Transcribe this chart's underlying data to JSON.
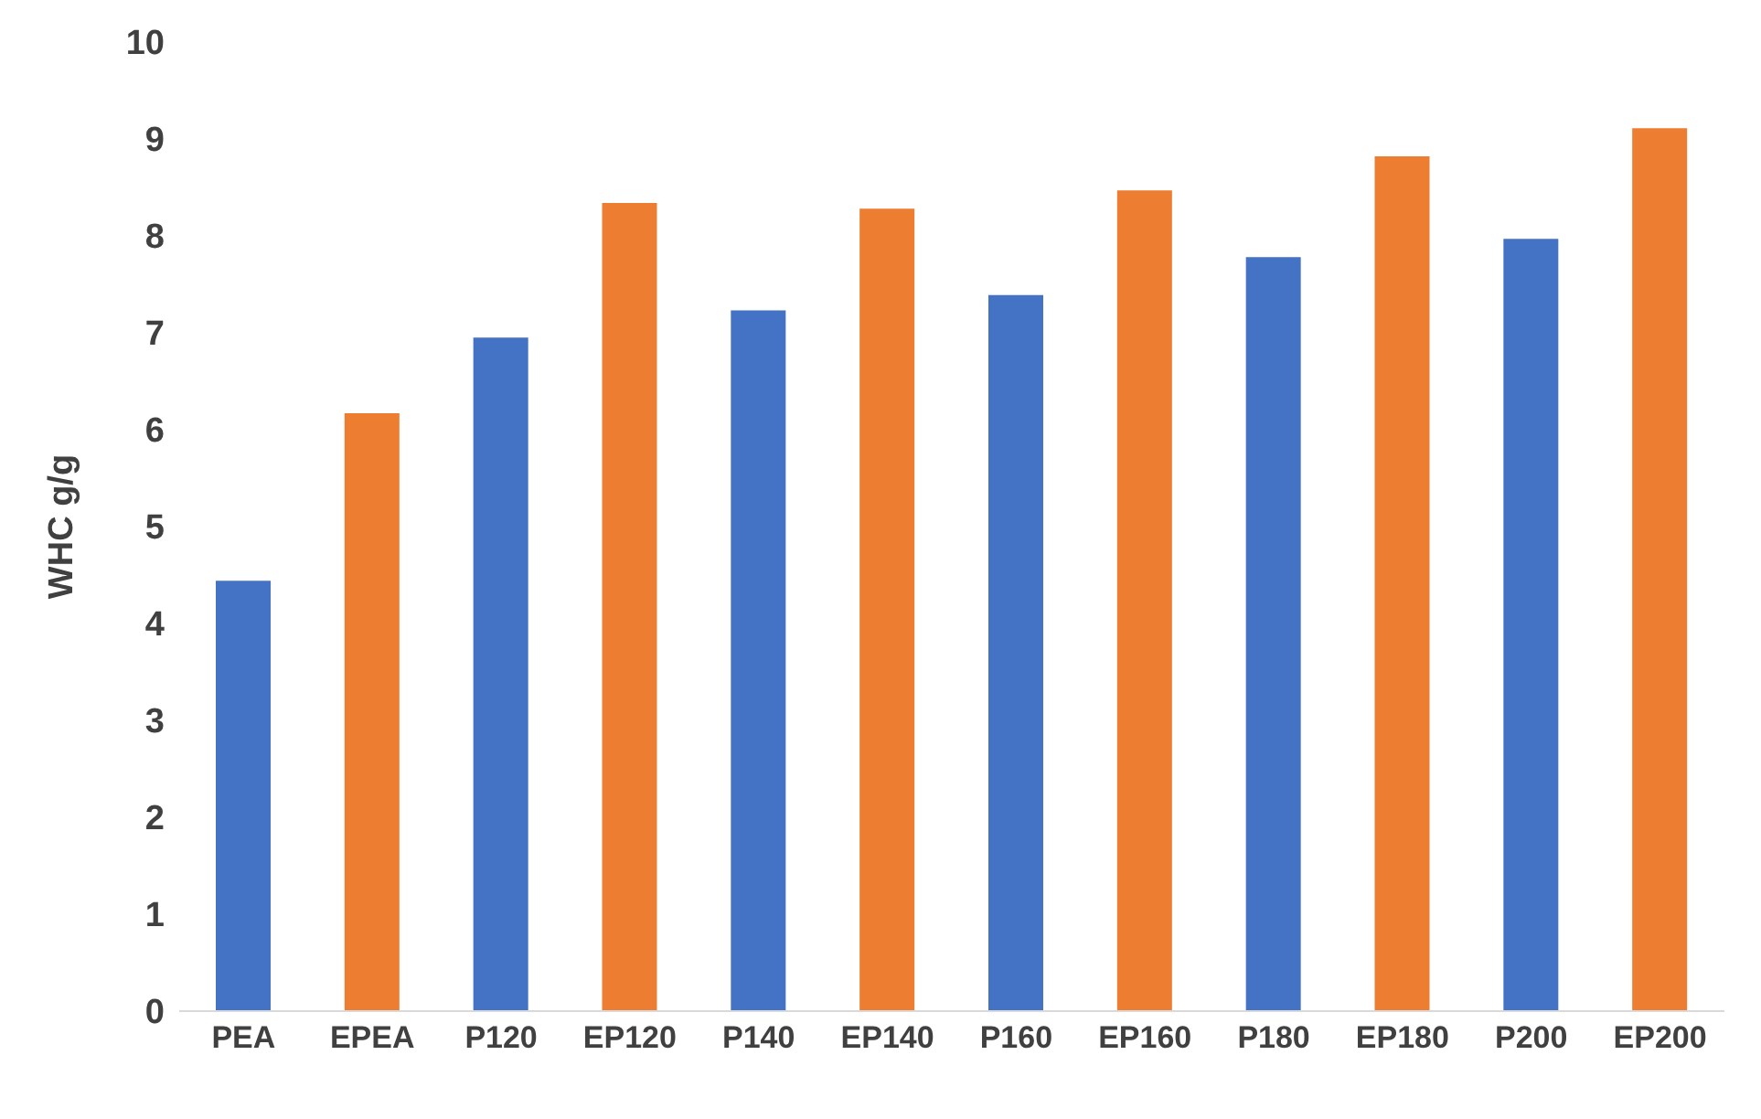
{
  "chart_data": {
    "type": "bar",
    "ylabel": "WHC g/g",
    "categories": [
      "PEA",
      "EPEA",
      "P120",
      "EP120",
      "P140",
      "EP140",
      "P160",
      "EP160",
      "P180",
      "EP180",
      "P200",
      "EP200"
    ],
    "values": [
      4.44,
      6.17,
      6.95,
      8.34,
      7.23,
      8.28,
      7.39,
      8.47,
      7.78,
      8.82,
      7.97,
      9.11
    ],
    "colors": [
      "#4472c4",
      "#ed7d31",
      "#4472c4",
      "#ed7d31",
      "#4472c4",
      "#ed7d31",
      "#4472c4",
      "#ed7d31",
      "#4472c4",
      "#ed7d31",
      "#4472c4",
      "#ed7d31"
    ],
    "ylim": [
      0,
      10
    ],
    "yticks": [
      0,
      1,
      2,
      3,
      4,
      5,
      6,
      7,
      8,
      9,
      10
    ],
    "grid": false,
    "legend": false
  }
}
